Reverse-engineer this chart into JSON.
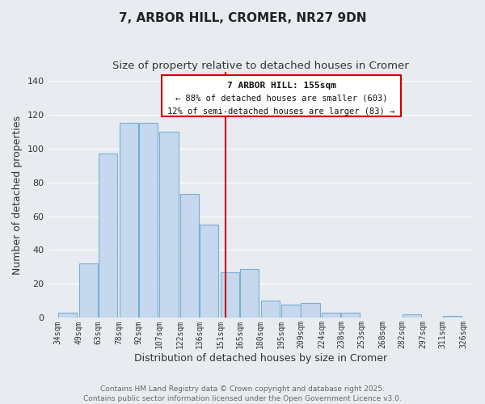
{
  "title": "7, ARBOR HILL, CROMER, NR27 9DN",
  "subtitle": "Size of property relative to detached houses in Cromer",
  "xlabel": "Distribution of detached houses by size in Cromer",
  "ylabel": "Number of detached properties",
  "bar_left_edges": [
    34,
    49,
    63,
    78,
    92,
    107,
    122,
    136,
    151,
    165,
    180,
    195,
    209,
    224,
    238,
    253,
    268,
    282,
    297,
    311
  ],
  "bar_heights": [
    3,
    32,
    97,
    115,
    115,
    110,
    73,
    55,
    27,
    29,
    10,
    8,
    9,
    3,
    3,
    0,
    0,
    2,
    0,
    1
  ],
  "bin_width": 14,
  "tick_labels": [
    "34sqm",
    "49sqm",
    "63sqm",
    "78sqm",
    "92sqm",
    "107sqm",
    "122sqm",
    "136sqm",
    "151sqm",
    "165sqm",
    "180sqm",
    "195sqm",
    "209sqm",
    "224sqm",
    "238sqm",
    "253sqm",
    "268sqm",
    "282sqm",
    "297sqm",
    "311sqm",
    "326sqm"
  ],
  "tick_positions": [
    34,
    49,
    63,
    78,
    92,
    107,
    122,
    136,
    151,
    165,
    180,
    195,
    209,
    224,
    238,
    253,
    268,
    282,
    297,
    311,
    326
  ],
  "bar_color": "#c5d8ed",
  "bar_edge_color": "#7aaed4",
  "ylim": [
    0,
    145
  ],
  "xlim": [
    27,
    333
  ],
  "marker_x": 155,
  "marker_label": "7 ARBOR HILL: 155sqm",
  "annotation_line1": "← 88% of detached houses are smaller (603)",
  "annotation_line2": "12% of semi-detached houses are larger (83) →",
  "marker_color": "#cc0000",
  "annotation_box_color": "#ffffff",
  "annotation_box_edge_color": "#cc0000",
  "footer1": "Contains HM Land Registry data © Crown copyright and database right 2025.",
  "footer2": "Contains public sector information licensed under the Open Government Licence v3.0.",
  "background_color": "#e8ecf0",
  "grid_color": "#ffffff",
  "title_fontsize": 11,
  "subtitle_fontsize": 9.5,
  "axis_label_fontsize": 9,
  "tick_fontsize": 7,
  "annotation_fontsize": 8,
  "footer_fontsize": 6.5
}
